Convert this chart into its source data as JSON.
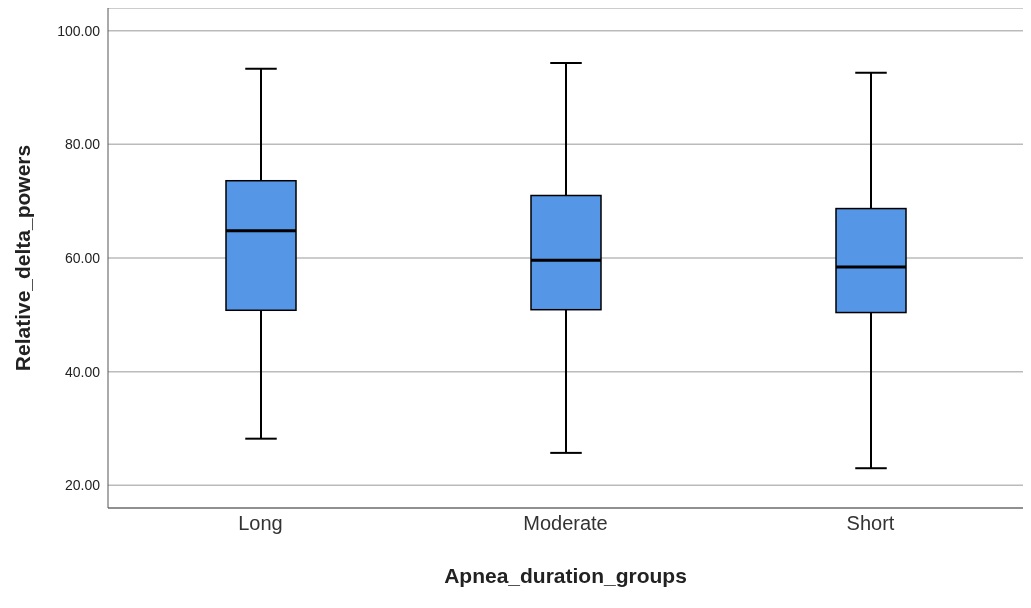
{
  "chart_data": {
    "type": "box",
    "xlabel": "Apnea_duration_groups",
    "ylabel": "Relative_delta_powers",
    "categories": [
      "Long",
      "Moderate",
      "Short"
    ],
    "boxes": [
      {
        "low": 28.2,
        "q1": 50.8,
        "median": 64.8,
        "q3": 73.6,
        "high": 93.3
      },
      {
        "low": 25.7,
        "q1": 50.9,
        "median": 59.6,
        "q3": 71.0,
        "high": 94.3
      },
      {
        "low": 23.0,
        "q1": 50.4,
        "median": 58.4,
        "q3": 68.7,
        "high": 92.6
      }
    ],
    "color": "#5596e6",
    "ylim": [
      16,
      104
    ],
    "yticks": [
      {
        "value": 20,
        "label": "20.00"
      },
      {
        "value": 40,
        "label": "40.00"
      },
      {
        "value": 60,
        "label": "60.00"
      },
      {
        "value": 80,
        "label": "80.00"
      },
      {
        "value": 100,
        "label": "100.00"
      }
    ],
    "grid": "y"
  }
}
